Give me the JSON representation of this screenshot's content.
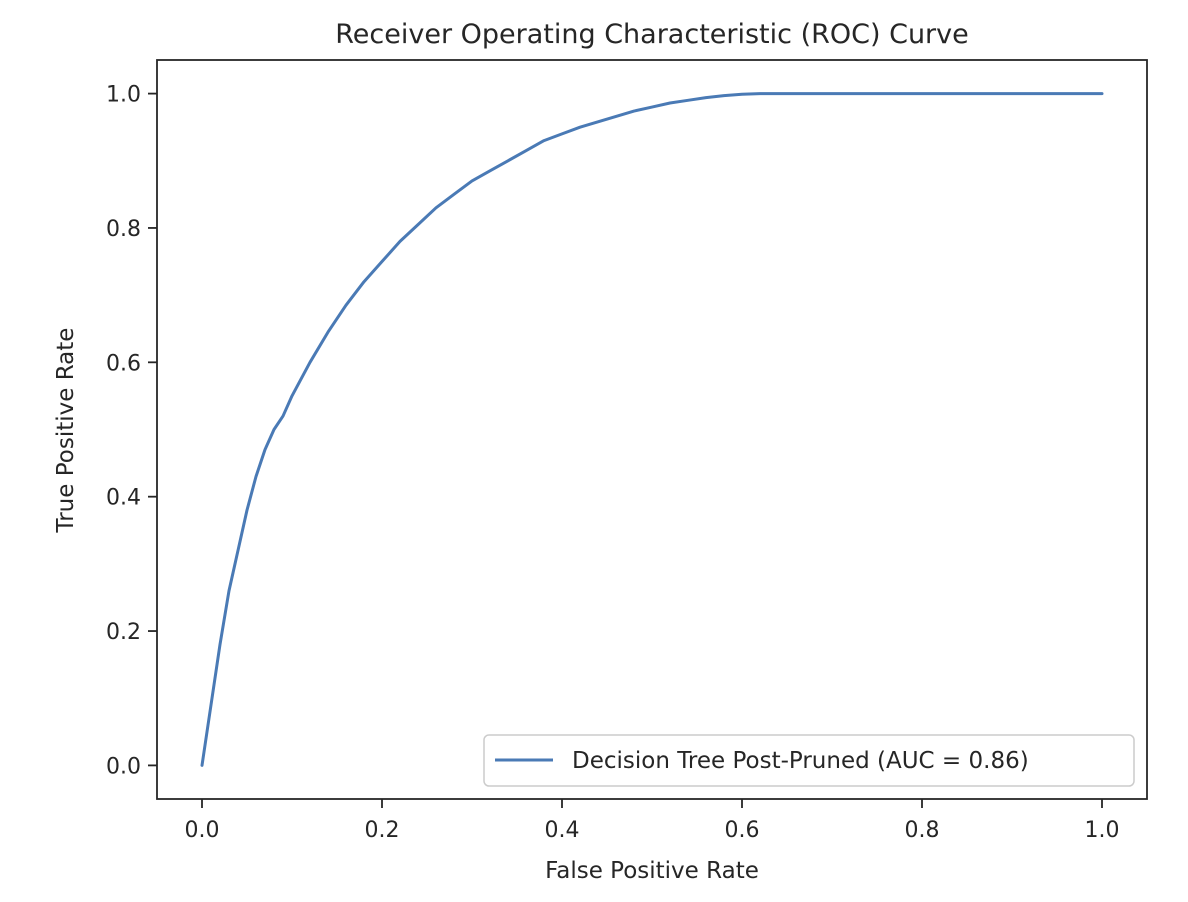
{
  "chart_data": {
    "type": "line",
    "title": "Receiver Operating Characteristic (ROC) Curve",
    "xlabel": "False Positive Rate",
    "ylabel": "True Positive Rate",
    "xlim": [
      -0.05,
      1.05
    ],
    "ylim": [
      -0.05,
      1.05
    ],
    "xticks": [
      0.0,
      0.2,
      0.4,
      0.6,
      0.8,
      1.0
    ],
    "xtick_labels": [
      "0.0",
      "0.2",
      "0.4",
      "0.6",
      "0.8",
      "1.0"
    ],
    "yticks": [
      0.0,
      0.2,
      0.4,
      0.6,
      0.8,
      1.0
    ],
    "ytick_labels": [
      "0.0",
      "0.2",
      "0.4",
      "0.6",
      "0.8",
      "1.0"
    ],
    "grid": false,
    "legend": {
      "position": "lower-right",
      "entries": [
        "Decision Tree Post-Pruned (AUC = 0.86)"
      ]
    },
    "series": [
      {
        "name": "Decision Tree Post-Pruned (AUC = 0.86)",
        "color": "#4a7ab5",
        "x": [
          0.0,
          0.01,
          0.02,
          0.03,
          0.04,
          0.05,
          0.06,
          0.07,
          0.08,
          0.09,
          0.1,
          0.12,
          0.14,
          0.16,
          0.18,
          0.2,
          0.22,
          0.24,
          0.26,
          0.28,
          0.3,
          0.32,
          0.34,
          0.36,
          0.38,
          0.4,
          0.42,
          0.44,
          0.46,
          0.48,
          0.5,
          0.52,
          0.54,
          0.56,
          0.58,
          0.6,
          0.62,
          0.65,
          0.7,
          0.8,
          0.9,
          1.0
        ],
        "y": [
          0.0,
          0.09,
          0.18,
          0.26,
          0.32,
          0.38,
          0.43,
          0.47,
          0.5,
          0.52,
          0.55,
          0.6,
          0.645,
          0.685,
          0.72,
          0.75,
          0.78,
          0.805,
          0.83,
          0.85,
          0.87,
          0.885,
          0.9,
          0.915,
          0.93,
          0.94,
          0.95,
          0.958,
          0.966,
          0.974,
          0.98,
          0.986,
          0.99,
          0.994,
          0.997,
          0.999,
          1.0,
          1.0,
          1.0,
          1.0,
          1.0,
          1.0
        ]
      }
    ]
  }
}
